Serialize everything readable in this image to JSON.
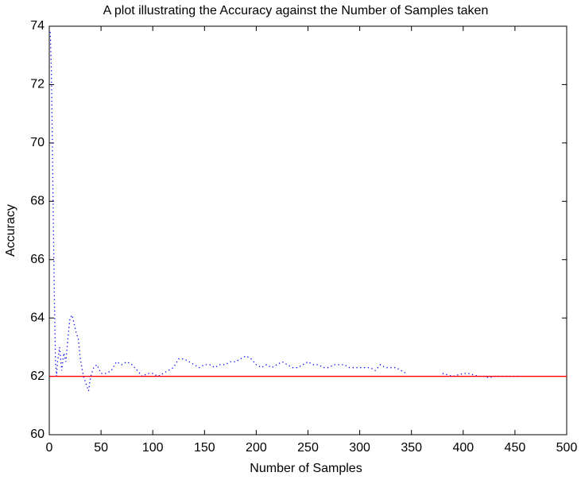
{
  "chart_data": {
    "type": "line",
    "title": "A plot illustrating the Accuracy against the Number of Samples taken",
    "xlabel": "Number of Samples",
    "ylabel": "Accuracy",
    "xlim": [
      0,
      500
    ],
    "xticks": [
      0,
      50,
      100,
      150,
      200,
      250,
      300,
      350,
      400,
      450,
      500
    ],
    "ylim": [
      60,
      74
    ],
    "yticks": [
      60,
      62,
      64,
      66,
      68,
      70,
      72,
      74
    ],
    "series": [
      {
        "color": "#0000ff",
        "style": "dotted",
        "x": [
          1,
          2,
          3,
          4,
          5,
          6,
          7,
          8,
          10,
          12,
          14,
          16,
          18,
          20,
          22,
          24,
          26,
          28,
          30,
          33,
          36,
          38,
          40,
          43,
          46,
          50,
          55,
          60,
          65,
          70,
          75,
          80,
          85,
          90,
          95,
          100,
          105,
          110,
          115,
          120,
          125,
          130,
          135,
          140,
          145,
          150,
          155,
          160,
          165,
          170,
          175,
          180,
          185,
          190,
          195,
          200,
          205,
          210,
          215,
          220,
          225,
          230,
          235,
          240,
          245,
          250,
          255,
          260,
          265,
          270,
          275,
          280,
          285,
          290,
          295,
          300,
          305,
          310,
          315,
          320,
          325,
          330,
          335,
          340,
          345,
          360,
          380,
          385,
          390,
          395,
          400,
          405,
          410,
          415,
          420,
          425,
          430,
          435,
          440,
          445,
          450,
          455
        ],
        "values": [
          73.8,
          72.5,
          70,
          67,
          64.5,
          62.5,
          62,
          62.5,
          63,
          62.2,
          62.8,
          62.5,
          63.3,
          64,
          64.1,
          63.8,
          63.5,
          63.3,
          62.6,
          62.0,
          61.7,
          61.5,
          62.0,
          62.3,
          62.4,
          62.1,
          62.1,
          62.2,
          62.5,
          62.4,
          62.5,
          62.4,
          62.2,
          62.0,
          62.1,
          62.1,
          62.0,
          62.1,
          62.2,
          62.3,
          62.6,
          62.6,
          62.5,
          62.4,
          62.3,
          62.4,
          62.4,
          62.3,
          62.4,
          62.4,
          62.5,
          62.5,
          62.6,
          62.7,
          62.6,
          62.4,
          62.3,
          62.4,
          62.3,
          62.4,
          62.5,
          62.4,
          62.3,
          62.3,
          62.4,
          62.5,
          62.4,
          62.4,
          62.3,
          62.3,
          62.4,
          62.4,
          62.4,
          62.3,
          62.3,
          62.3,
          62.3,
          62.3,
          62.2,
          62.4,
          62.3,
          62.3,
          62.3,
          62.2,
          62.1,
          null,
          62.1,
          62.05,
          62.0,
          62.05,
          62.1,
          62.1,
          62.05,
          62.0,
          62.0,
          61.95,
          62.0,
          62.0,
          62.0,
          62.0,
          62.0,
          62.0
        ]
      },
      {
        "color": "#ff0000",
        "style": "solid",
        "x": [
          0,
          500
        ],
        "values": [
          62,
          62
        ]
      }
    ]
  }
}
